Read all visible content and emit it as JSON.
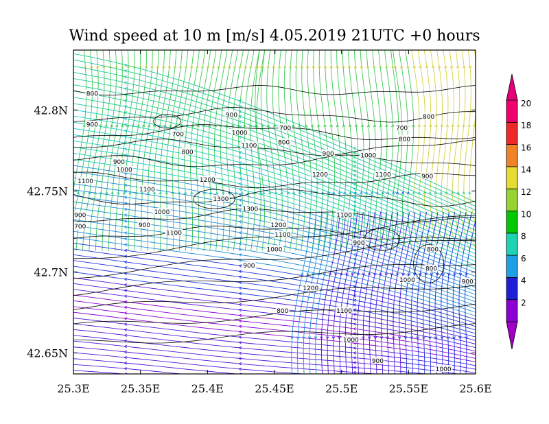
{
  "title": "Wind speed at 10 m [m/s] 4.05.2019 21UTC   +0 hours",
  "map": {
    "x_ticks": [
      "25.3E",
      "25.35E",
      "25.4E",
      "25.45E",
      "25.5E",
      "25.55E",
      "25.6E"
    ],
    "y_ticks": [
      "42.8N",
      "42.75N",
      "42.7N",
      "42.65N"
    ],
    "xlim": [
      25.3,
      25.6
    ],
    "ylim": [
      42.637,
      42.837
    ],
    "contour_labels": [
      {
        "text": "800",
        "lon": 25.314,
        "lat": 42.81
      },
      {
        "text": "900",
        "lon": 25.314,
        "lat": 42.791
      },
      {
        "text": "900",
        "lon": 25.418,
        "lat": 42.797
      },
      {
        "text": "700",
        "lon": 25.378,
        "lat": 42.785
      },
      {
        "text": "1000",
        "lon": 25.424,
        "lat": 42.786
      },
      {
        "text": "700",
        "lon": 25.458,
        "lat": 42.789
      },
      {
        "text": "800",
        "lon": 25.385,
        "lat": 42.774
      },
      {
        "text": "1100",
        "lon": 25.431,
        "lat": 42.778
      },
      {
        "text": "800",
        "lon": 25.457,
        "lat": 42.78
      },
      {
        "text": "900",
        "lon": 25.49,
        "lat": 42.773
      },
      {
        "text": "1000",
        "lon": 25.52,
        "lat": 42.772
      },
      {
        "text": "800",
        "lon": 25.565,
        "lat": 42.796
      },
      {
        "text": "700",
        "lon": 25.545,
        "lat": 42.789
      },
      {
        "text": "800",
        "lon": 25.547,
        "lat": 42.782
      },
      {
        "text": "900",
        "lon": 25.334,
        "lat": 42.768
      },
      {
        "text": "1000",
        "lon": 25.338,
        "lat": 42.763
      },
      {
        "text": "1200",
        "lon": 25.4,
        "lat": 42.757
      },
      {
        "text": "1200",
        "lon": 25.484,
        "lat": 42.76
      },
      {
        "text": "1100",
        "lon": 25.531,
        "lat": 42.76
      },
      {
        "text": "900",
        "lon": 25.564,
        "lat": 42.759
      },
      {
        "text": "1100",
        "lon": 25.309,
        "lat": 42.756
      },
      {
        "text": "1100",
        "lon": 25.355,
        "lat": 42.751
      },
      {
        "text": "1300",
        "lon": 25.41,
        "lat": 42.745
      },
      {
        "text": "1300",
        "lon": 25.432,
        "lat": 42.739
      },
      {
        "text": "1000",
        "lon": 25.366,
        "lat": 42.737
      },
      {
        "text": "900",
        "lon": 25.305,
        "lat": 42.735
      },
      {
        "text": "700",
        "lon": 25.305,
        "lat": 42.728
      },
      {
        "text": "900",
        "lon": 25.353,
        "lat": 42.729
      },
      {
        "text": "1200",
        "lon": 25.453,
        "lat": 42.729
      },
      {
        "text": "1100",
        "lon": 25.456,
        "lat": 42.723
      },
      {
        "text": "1100",
        "lon": 25.375,
        "lat": 42.724
      },
      {
        "text": "1100",
        "lon": 25.502,
        "lat": 42.735
      },
      {
        "text": "900",
        "lon": 25.513,
        "lat": 42.718
      },
      {
        "text": "1000",
        "lon": 25.45,
        "lat": 42.714
      },
      {
        "text": "900",
        "lon": 25.431,
        "lat": 42.704
      },
      {
        "text": "1200",
        "lon": 25.477,
        "lat": 42.69
      },
      {
        "text": "800",
        "lon": 25.568,
        "lat": 42.714
      },
      {
        "text": "1000",
        "lon": 25.549,
        "lat": 42.695
      },
      {
        "text": "800",
        "lon": 25.567,
        "lat": 42.702
      },
      {
        "text": "900",
        "lon": 25.594,
        "lat": 42.694
      },
      {
        "text": "800",
        "lon": 25.456,
        "lat": 42.676
      },
      {
        "text": "1100",
        "lon": 25.502,
        "lat": 42.676
      },
      {
        "text": "1000",
        "lon": 25.507,
        "lat": 42.658
      },
      {
        "text": "900",
        "lon": 25.527,
        "lat": 42.645
      },
      {
        "text": "1000",
        "lon": 25.576,
        "lat": 42.64
      }
    ]
  },
  "colorbar": {
    "labels": [
      "2",
      "4",
      "6",
      "8",
      "10",
      "12",
      "14",
      "16",
      "18",
      "20"
    ],
    "colors": [
      "#8c00d6",
      "#1e1ed8",
      "#1ea0e6",
      "#1ed2b4",
      "#00c800",
      "#96d232",
      "#e6dc32",
      "#f08228",
      "#f02828",
      "#f0006e"
    ],
    "low_arrow_color": "#a000c8",
    "high_arrow_color": "#e6007a"
  }
}
